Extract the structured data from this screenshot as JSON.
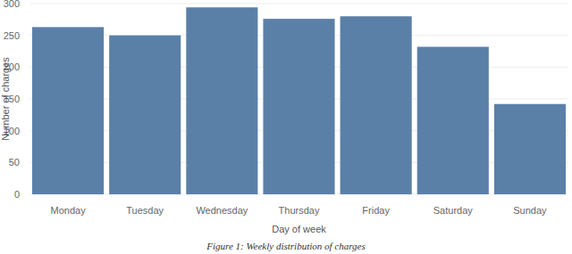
{
  "chart_data": {
    "type": "bar",
    "title": "Figure 1: Weekly distribution of charges",
    "x_label": "Day of week",
    "y_label": "Number of charges",
    "categories": [
      "Monday",
      "Tuesday",
      "Wednesday",
      "Thursday",
      "Friday",
      "Saturday",
      "Sunday"
    ],
    "values": [
      263,
      250,
      294,
      276,
      280,
      232,
      142
    ],
    "color": "#5b80a8",
    "ylim": [
      0,
      300
    ],
    "yticks": [
      0,
      50,
      100,
      150,
      200,
      250,
      300
    ],
    "grid": true
  }
}
